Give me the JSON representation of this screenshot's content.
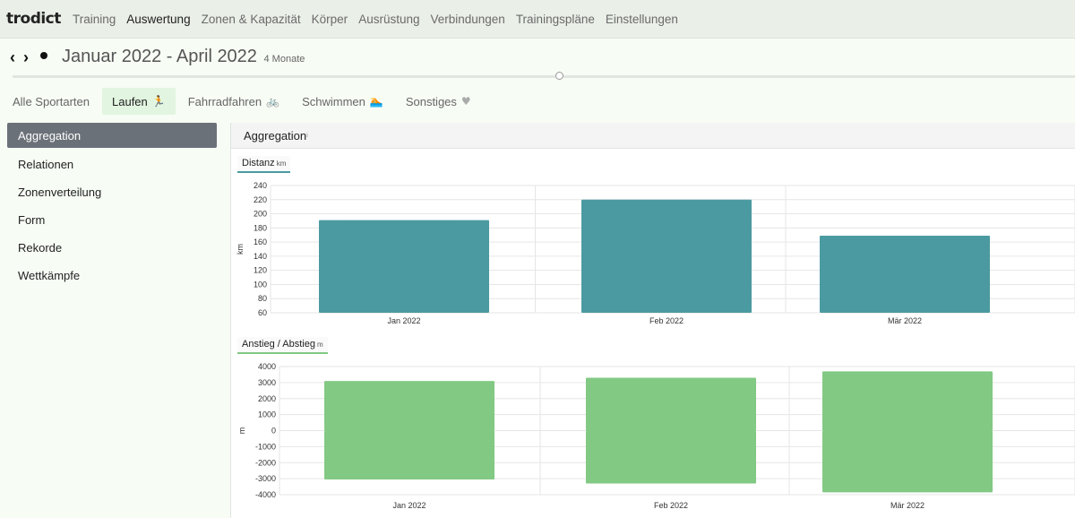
{
  "navbar": {
    "brand": "trodict",
    "items": [
      "Training",
      "Auswertung",
      "Zonen & Kapazität",
      "Körper",
      "Ausrüstung",
      "Verbindungen",
      "Trainingspläne",
      "Einstellungen"
    ],
    "active_index": 1
  },
  "date_range": {
    "title": "Januar 2022 - April 2022",
    "subtitle": "4 Monate"
  },
  "sport_tabs": [
    {
      "label": "Alle Sportarten",
      "icon": "",
      "active": false
    },
    {
      "label": "Laufen",
      "icon": "runner-icon",
      "active": true
    },
    {
      "label": "Fahrradfahren",
      "icon": "bicycle-icon",
      "active": false
    },
    {
      "label": "Schwimmen",
      "icon": "swimmer-icon",
      "active": false
    },
    {
      "label": "Sonstiges",
      "icon": "heart-icon",
      "active": false
    }
  ],
  "sidebar": {
    "items": [
      "Aggregation",
      "Relationen",
      "Zonenverteilung",
      "Form",
      "Rekorde",
      "Wettkämpfe"
    ],
    "active_index": 0
  },
  "panel": {
    "title": "Aggregation",
    "superscript": "i"
  },
  "chart_data": [
    {
      "type": "bar",
      "label": "Distanz",
      "unit": "km",
      "ylabel": "km",
      "categories": [
        "Jan 2022",
        "Feb 2022",
        "Mär 2022"
      ],
      "values": [
        191,
        220,
        169
      ],
      "ylim": [
        60,
        240
      ],
      "yticks": [
        60,
        80,
        100,
        120,
        140,
        160,
        180,
        200,
        220,
        240
      ],
      "color": "#4b9aa1",
      "label_color": "#4b9aa1",
      "grid": true
    },
    {
      "type": "bar",
      "label": "Anstieg / Abstieg",
      "unit": "m",
      "ylabel": "m",
      "categories": [
        "Jan 2022",
        "Feb 2022",
        "Mär 2022"
      ],
      "series": [
        {
          "values": [
            3100,
            3300,
            3700
          ]
        },
        {
          "values": [
            -3050,
            -3300,
            -3850
          ]
        }
      ],
      "ylim": [
        -4000,
        4000
      ],
      "yticks": [
        4000,
        3000,
        2000,
        1000,
        0,
        -1000,
        -2000,
        -3000,
        -4000
      ],
      "color": "#82c984",
      "label_color": "#82c984",
      "grid": true
    }
  ]
}
